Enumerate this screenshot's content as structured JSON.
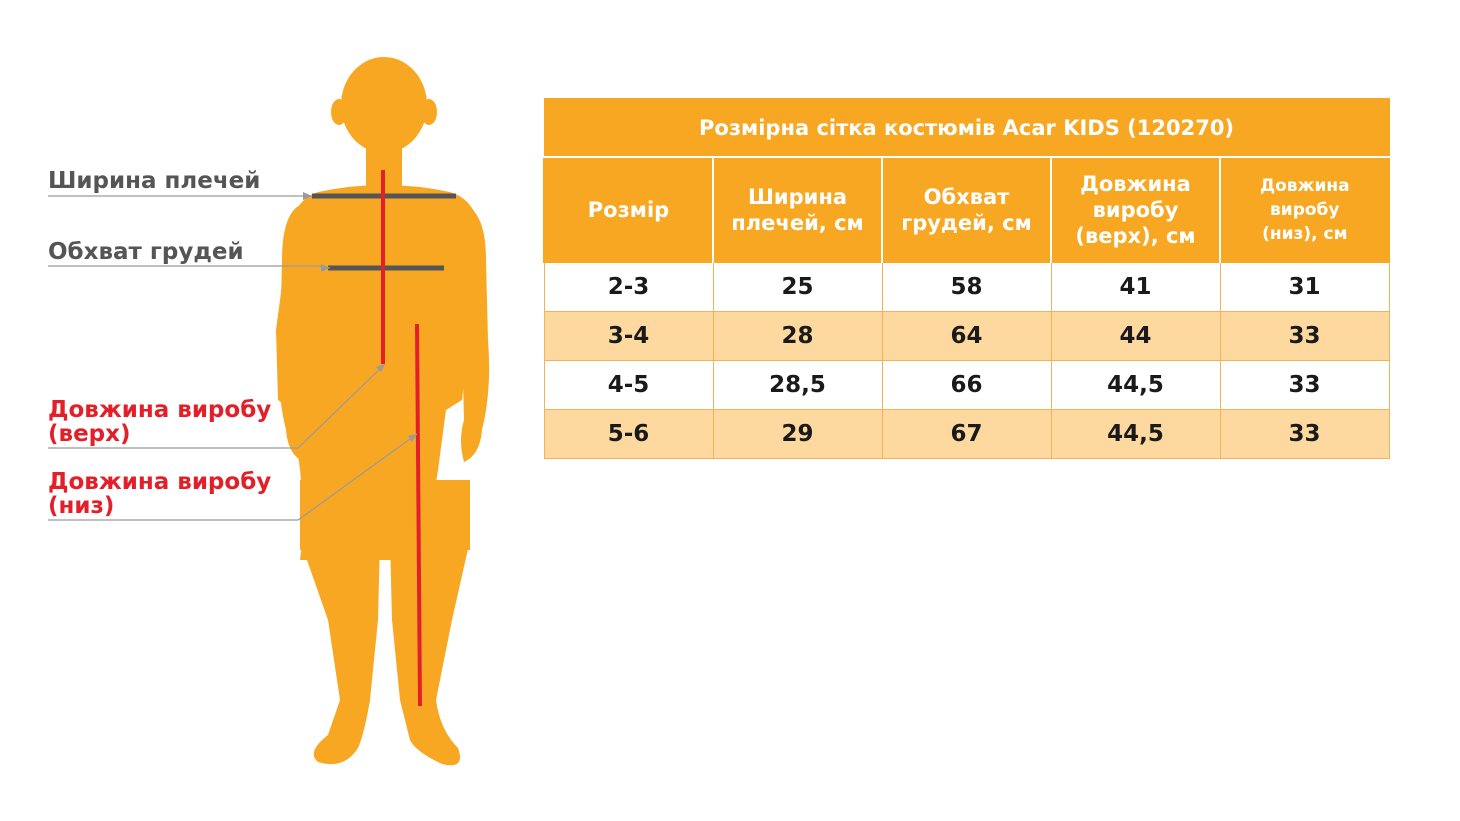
{
  "figure": {
    "labels": {
      "shoulder": "Ширина плечей",
      "chest": "Обхват грудей",
      "top_length_line1": "Довжина виробу",
      "top_length_line2": "(верх)",
      "bottom_length_line1": "Довжина виробу",
      "bottom_length_line2": "(низ)"
    }
  },
  "colors": {
    "accent": "#f8a723",
    "row_highlight": "#fdd9a0",
    "measure_line": "#e3202a",
    "label_grey": "#555555"
  },
  "table": {
    "title": "Розмірна сітка костюмів Acar KIDS (120270)",
    "headers": [
      [
        "Розмір"
      ],
      [
        "Ширина",
        "плечей, см"
      ],
      [
        "Обхват",
        "грудей, см"
      ],
      [
        "Довжина",
        "виробу",
        "(верх), см"
      ],
      [
        "Довжина",
        "виробу",
        "(низ), см"
      ]
    ],
    "rows": [
      [
        "2-3",
        "25",
        "58",
        "41",
        "31"
      ],
      [
        "3-4",
        "28",
        "64",
        "44",
        "33"
      ],
      [
        "4-5",
        "28,5",
        "66",
        "44,5",
        "33"
      ],
      [
        "5-6",
        "29",
        "67",
        "44,5",
        "33"
      ]
    ]
  }
}
